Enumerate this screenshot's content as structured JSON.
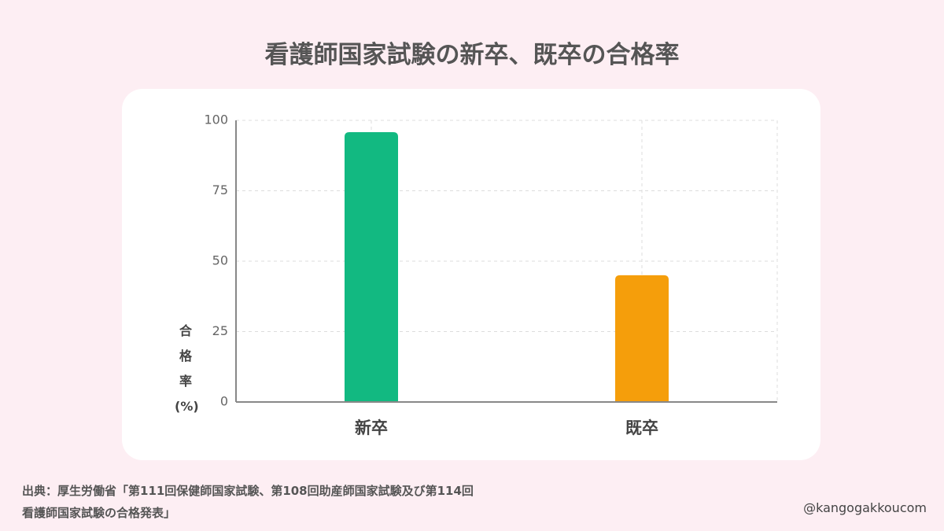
{
  "chart_data": {
    "type": "bar",
    "title": "看護師国家試験の新卒、既卒の合格率",
    "y_label": "合格率(%)",
    "categories": [
      "新卒",
      "既卒"
    ],
    "values": [
      95.8,
      45.0
    ],
    "colors": [
      "#12b981",
      "#f59e0b"
    ],
    "ylim": [
      0,
      100
    ],
    "yticks": [
      0,
      25,
      50,
      75,
      100
    ],
    "grid": true
  },
  "footer": {
    "source": "出典：厚生労働省「第111回保健師国家試験、第108回助産師国家試験及び第114回看護師国家試験の合格発表」",
    "handle": "@kangogakkoucom"
  }
}
